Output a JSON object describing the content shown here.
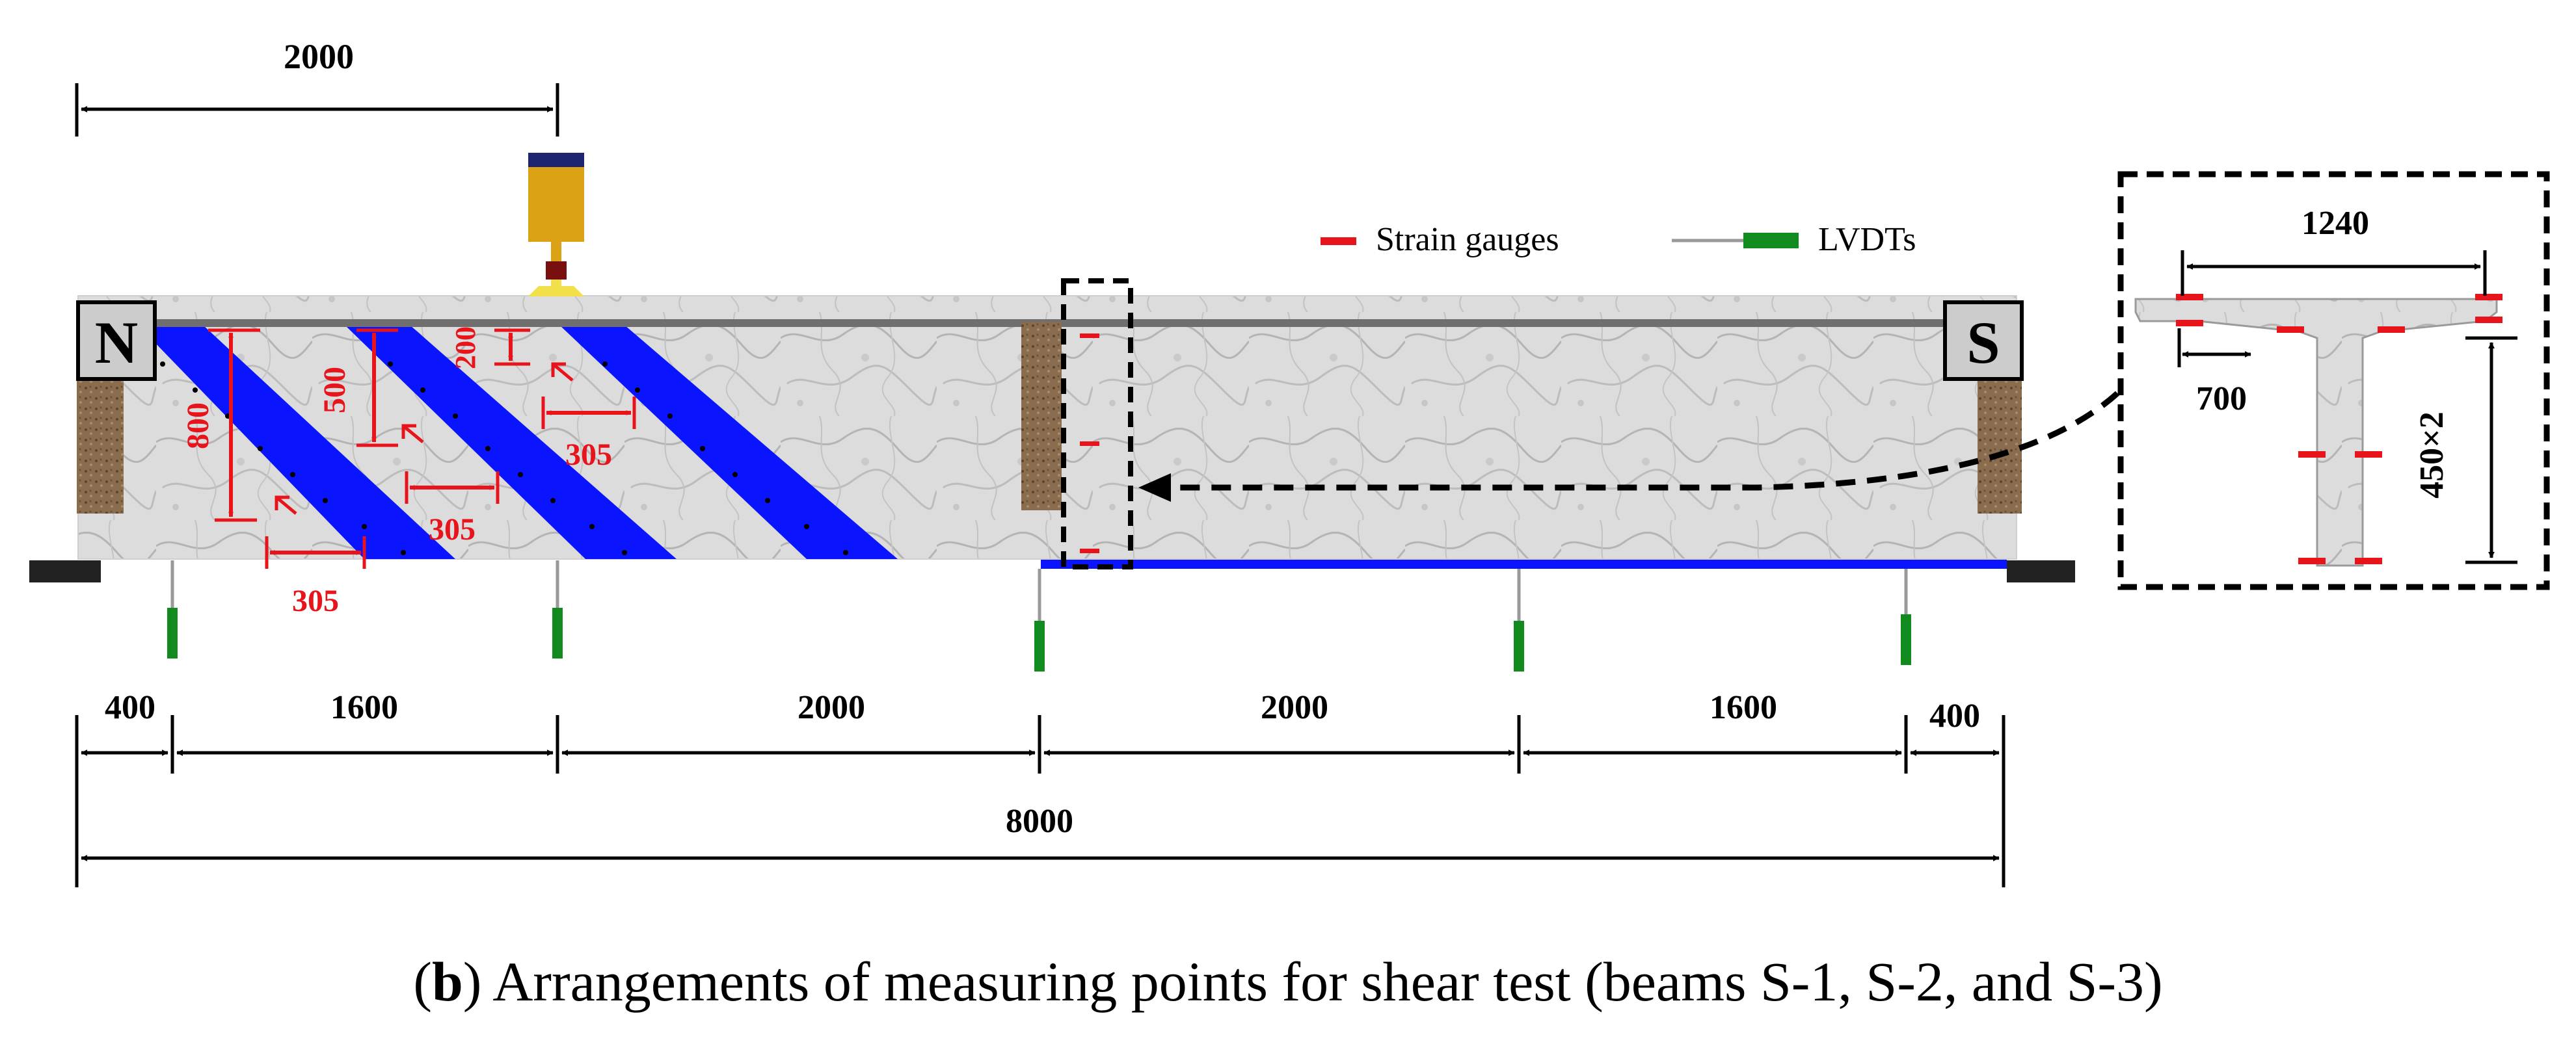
{
  "diagram": {
    "markers": {
      "north": "N",
      "south": "S"
    },
    "legend": {
      "strain_gauges": "Strain gauges",
      "lvdts": "LVDTs"
    },
    "dimensions": {
      "load_offset": "2000",
      "bottom_spans": [
        "400",
        "1600",
        "2000",
        "2000",
        "1600",
        "400"
      ],
      "total_length": "8000",
      "cfrp_spacing": [
        "305",
        "305",
        "305"
      ],
      "cfrp_heights": [
        "800",
        "500",
        "200"
      ],
      "section_width": "1240",
      "flange_gauge_spacing": "700",
      "web_height": "450×2"
    },
    "colors": {
      "cfrp": "#0a14ff",
      "strain_gauge": "#e8141c",
      "lvdt": "#118a1e",
      "actuator_top": "#1f2470",
      "actuator_body": "#dba216",
      "dimension_red": "#e8141c",
      "concrete": "#dedede"
    }
  },
  "caption": {
    "label": "b",
    "text": " Arrangements of measuring points for shear test (beams S-1, S-2, and S-3)"
  }
}
